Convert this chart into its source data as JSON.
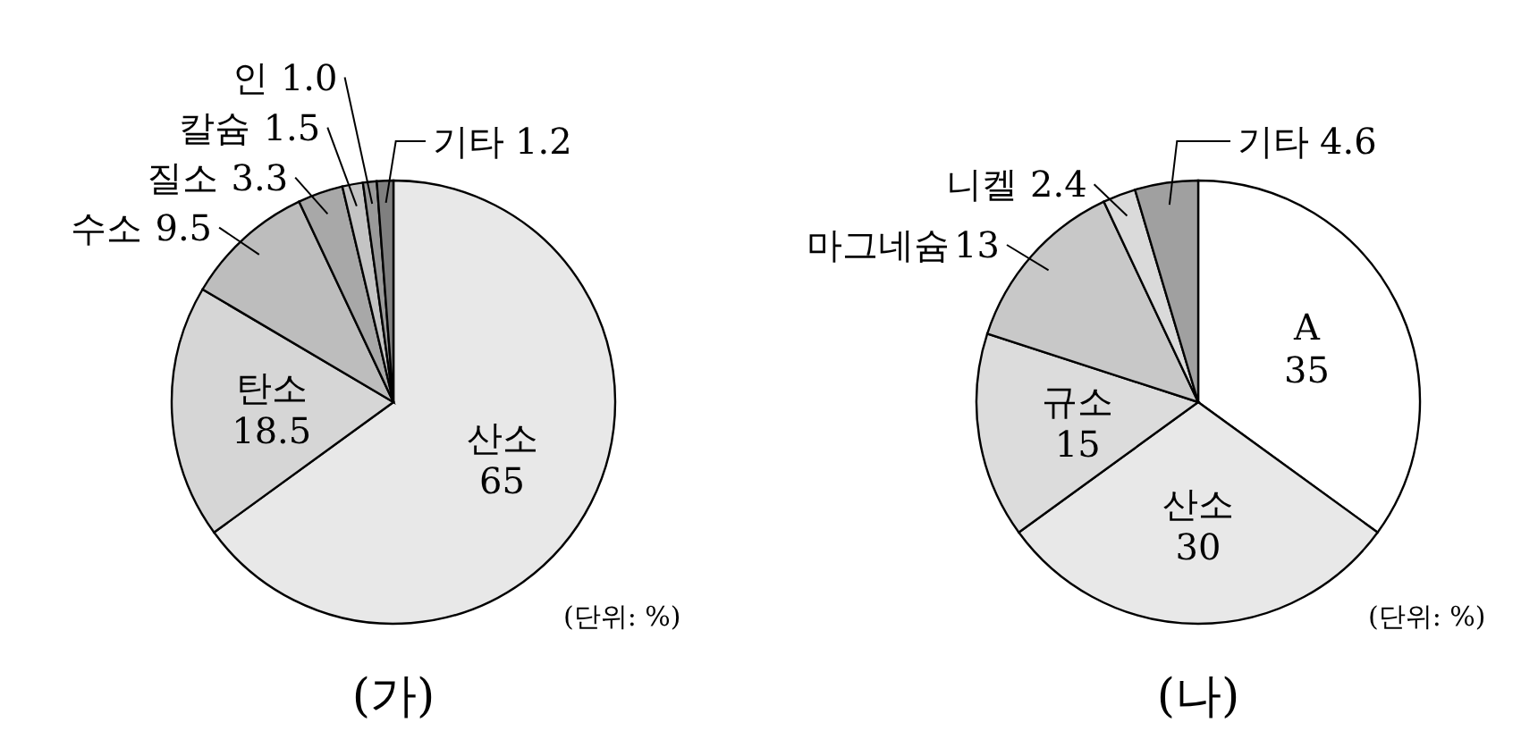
{
  "chart_data": [
    {
      "type": "pie",
      "title": "(가)",
      "categories": [
        "산소",
        "탄소",
        "수소",
        "질소",
        "칼슘",
        "인",
        "기타"
      ],
      "values": [
        65,
        18.5,
        9.5,
        3.3,
        1.5,
        1.0,
        1.2
      ],
      "value_labels": [
        "65",
        "18.5",
        "9.5",
        "3.3",
        "1.5",
        "1.0",
        "1.2"
      ],
      "colors": [
        "#e8e8e8",
        "#d6d6d6",
        "#bdbdbd",
        "#a8a8a8",
        "#c4c4c4",
        "#9a9a9a",
        "#7f7f7f"
      ],
      "annotations": [
        "(단위: %)"
      ]
    },
    {
      "type": "pie",
      "title": "(나)",
      "categories": [
        "A",
        "산소",
        "규소",
        "마그네슘",
        "니켈",
        "기타"
      ],
      "values": [
        35,
        30,
        15,
        13,
        2.4,
        4.6
      ],
      "value_labels": [
        "35",
        "30",
        "15",
        "13",
        "2.4",
        "4.6"
      ],
      "colors": [
        "#ffffff",
        "#e8e8e8",
        "#dcdcdc",
        "#c8c8c8",
        "#dadada",
        "#a0a0a0"
      ],
      "annotations": [
        "(단위: %)"
      ]
    }
  ]
}
